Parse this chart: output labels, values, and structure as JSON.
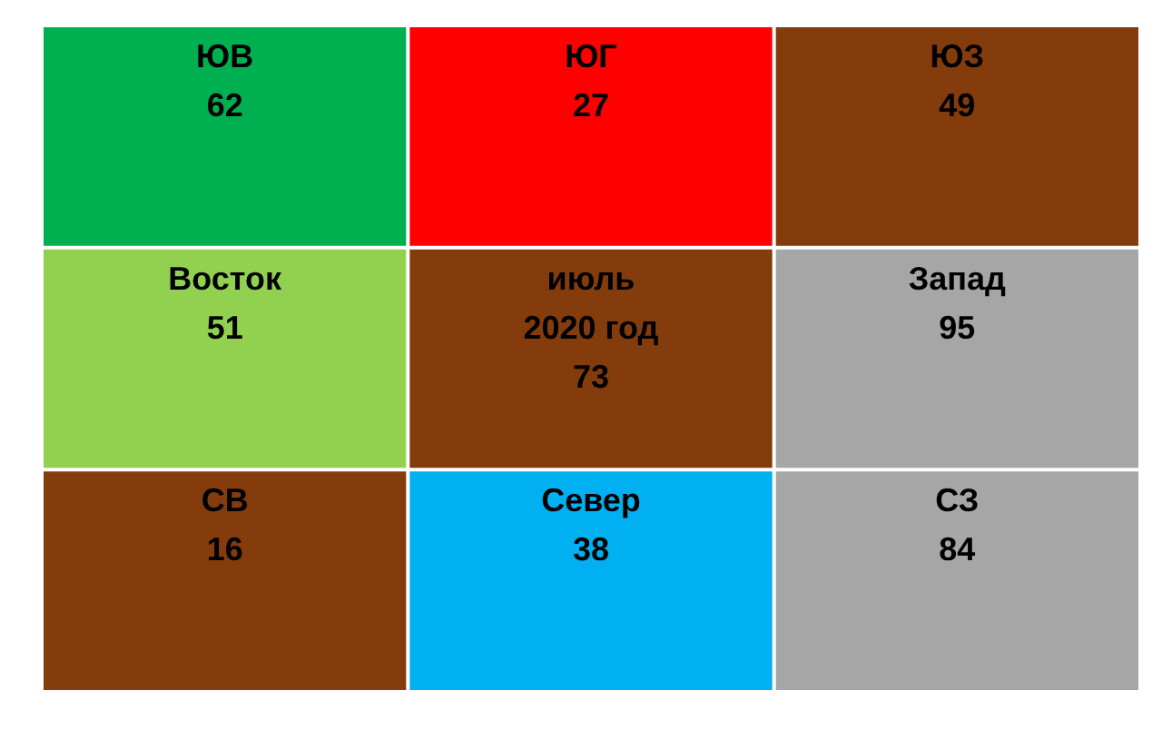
{
  "chart_data": {
    "type": "other",
    "categories": [
      "ЮВ",
      "ЮГ",
      "ЮЗ",
      "Восток",
      "июль\n2020 год",
      "Запад",
      "СВ",
      "Север",
      "СЗ"
    ],
    "values": [
      62,
      27,
      49,
      51,
      73,
      95,
      16,
      38,
      84
    ],
    "colors": [
      "#00b050",
      "#ff0000",
      "#843c0c",
      "#92d050",
      "#843c0c",
      "#a6a6a6",
      "#843c0c",
      "#00b0f0",
      "#a6a6a6"
    ],
    "data_labels": true
  }
}
